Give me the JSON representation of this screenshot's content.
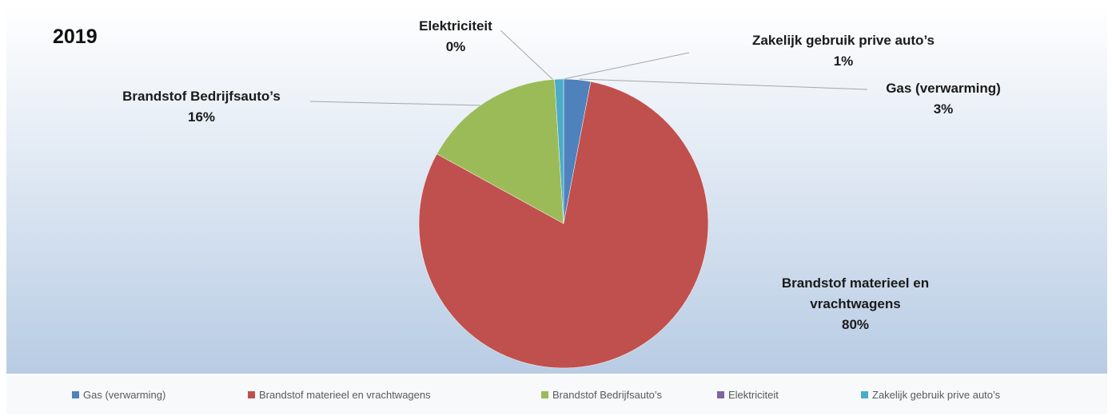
{
  "chart_data": {
    "type": "pie",
    "title": "2019",
    "categories": [
      "Gas (verwarming)",
      "Brandstof materieel en vrachtwagens",
      "Brandstof Bedrijfsauto’s",
      "Elektriciteit",
      "Zakelijk gebruik prive auto’s"
    ],
    "values": [
      3,
      80,
      16,
      0,
      1
    ],
    "value_labels": [
      "3%",
      "80%",
      "16%",
      "0%",
      "1%"
    ],
    "colors": [
      "#4f81bd",
      "#c0504d",
      "#9bbb59",
      "#8064a2",
      "#4bacc6"
    ],
    "legend": "bottom"
  }
}
